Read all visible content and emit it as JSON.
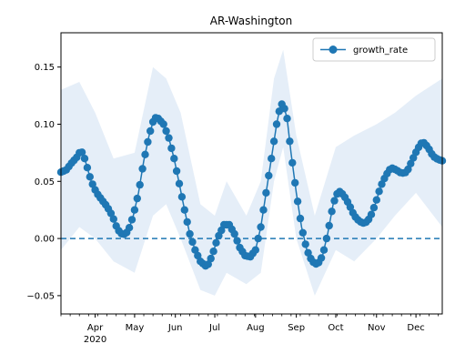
{
  "chart_data": {
    "type": "line",
    "title": "AR-Washington",
    "xlabel": "",
    "ylabel": "",
    "x_range": [
      "2020-03-06",
      "2020-12-21"
    ],
    "ylim": [
      -0.066,
      0.18
    ],
    "grid": false,
    "legend_position": "top-right",
    "series": [
      {
        "name": "growth_rate",
        "color": "#1f77b4",
        "marker": "circle",
        "points": [
          [
            "2020-03-06",
            0.058
          ],
          [
            "2020-03-10",
            0.06
          ],
          [
            "2020-03-14",
            0.066
          ],
          [
            "2020-03-18",
            0.071
          ],
          [
            "2020-03-21",
            0.077
          ],
          [
            "2020-03-23",
            0.074
          ],
          [
            "2020-03-26",
            0.062
          ],
          [
            "2020-03-29",
            0.05
          ],
          [
            "2020-04-02",
            0.04
          ],
          [
            "2020-04-06",
            0.034
          ],
          [
            "2020-04-10",
            0.028
          ],
          [
            "2020-04-14",
            0.02
          ],
          [
            "2020-04-18",
            0.008
          ],
          [
            "2020-04-22",
            0.003
          ],
          [
            "2020-04-26",
            0.006
          ],
          [
            "2020-04-30",
            0.02
          ],
          [
            "2020-05-04",
            0.04
          ],
          [
            "2020-05-08",
            0.068
          ],
          [
            "2020-05-12",
            0.09
          ],
          [
            "2020-05-16",
            0.106
          ],
          [
            "2020-05-19",
            0.105
          ],
          [
            "2020-05-23",
            0.1
          ],
          [
            "2020-05-27",
            0.088
          ],
          [
            "2020-05-31",
            0.07
          ],
          [
            "2020-06-04",
            0.048
          ],
          [
            "2020-06-08",
            0.025
          ],
          [
            "2020-06-12",
            0.004
          ],
          [
            "2020-06-16",
            -0.01
          ],
          [
            "2020-06-20",
            -0.02
          ],
          [
            "2020-06-25",
            -0.025
          ],
          [
            "2020-06-29",
            -0.015
          ],
          [
            "2020-07-03",
            0.0
          ],
          [
            "2020-07-08",
            0.012
          ],
          [
            "2020-07-12",
            0.012
          ],
          [
            "2020-07-16",
            0.004
          ],
          [
            "2020-07-20",
            -0.008
          ],
          [
            "2020-07-24",
            -0.015
          ],
          [
            "2020-07-28",
            -0.016
          ],
          [
            "2020-08-01",
            -0.01
          ],
          [
            "2020-08-05",
            0.01
          ],
          [
            "2020-08-09",
            0.04
          ],
          [
            "2020-08-13",
            0.07
          ],
          [
            "2020-08-17",
            0.1
          ],
          [
            "2020-08-20",
            0.117
          ],
          [
            "2020-08-22",
            0.118
          ],
          [
            "2020-08-25",
            0.105
          ],
          [
            "2020-08-28",
            0.075
          ],
          [
            "2020-09-01",
            0.04
          ],
          [
            "2020-09-05",
            0.01
          ],
          [
            "2020-09-09",
            -0.01
          ],
          [
            "2020-09-13",
            -0.02
          ],
          [
            "2020-09-17",
            -0.023
          ],
          [
            "2020-09-21",
            -0.015
          ],
          [
            "2020-09-25",
            0.005
          ],
          [
            "2020-09-29",
            0.03
          ],
          [
            "2020-10-03",
            0.042
          ],
          [
            "2020-10-07",
            0.038
          ],
          [
            "2020-10-11",
            0.03
          ],
          [
            "2020-10-15",
            0.02
          ],
          [
            "2020-10-19",
            0.015
          ],
          [
            "2020-10-23",
            0.013
          ],
          [
            "2020-10-27",
            0.018
          ],
          [
            "2020-10-31",
            0.03
          ],
          [
            "2020-11-04",
            0.045
          ],
          [
            "2020-11-08",
            0.055
          ],
          [
            "2020-11-12",
            0.062
          ],
          [
            "2020-11-16",
            0.06
          ],
          [
            "2020-11-20",
            0.057
          ],
          [
            "2020-11-24",
            0.058
          ],
          [
            "2020-11-28",
            0.068
          ],
          [
            "2020-12-02",
            0.078
          ],
          [
            "2020-12-06",
            0.085
          ],
          [
            "2020-12-10",
            0.08
          ],
          [
            "2020-12-14",
            0.072
          ],
          [
            "2020-12-18",
            0.069
          ],
          [
            "2020-12-21",
            0.068
          ]
        ],
        "band": [
          [
            "2020-03-06",
            -0.01,
            0.13
          ],
          [
            "2020-03-20",
            0.01,
            0.137
          ],
          [
            "2020-04-01",
            0.0,
            0.11
          ],
          [
            "2020-04-15",
            -0.02,
            0.07
          ],
          [
            "2020-05-01",
            -0.03,
            0.075
          ],
          [
            "2020-05-15",
            0.02,
            0.15
          ],
          [
            "2020-05-25",
            0.03,
            0.14
          ],
          [
            "2020-06-05",
            0.0,
            0.11
          ],
          [
            "2020-06-20",
            -0.045,
            0.03
          ],
          [
            "2020-07-01",
            -0.05,
            0.02
          ],
          [
            "2020-07-10",
            -0.03,
            0.05
          ],
          [
            "2020-07-25",
            -0.04,
            0.02
          ],
          [
            "2020-08-05",
            -0.03,
            0.05
          ],
          [
            "2020-08-15",
            0.05,
            0.14
          ],
          [
            "2020-08-22",
            0.08,
            0.165
          ],
          [
            "2020-09-01",
            0.0,
            0.09
          ],
          [
            "2020-09-15",
            -0.05,
            0.02
          ],
          [
            "2020-10-01",
            -0.01,
            0.08
          ],
          [
            "2020-10-15",
            -0.02,
            0.09
          ],
          [
            "2020-11-01",
            0.0,
            0.1
          ],
          [
            "2020-11-15",
            0.02,
            0.11
          ],
          [
            "2020-12-01",
            0.04,
            0.125
          ],
          [
            "2020-12-21",
            0.01,
            0.14
          ]
        ]
      }
    ],
    "reference_line": {
      "y": 0.0,
      "style": "dashed",
      "color": "#1f77b4"
    },
    "y_ticks": [
      {
        "value": -0.05,
        "label": "−0.05"
      },
      {
        "value": 0.0,
        "label": "0.00"
      },
      {
        "value": 0.05,
        "label": "0.05"
      },
      {
        "value": 0.1,
        "label": "0.10"
      },
      {
        "value": 0.15,
        "label": "0.15"
      }
    ],
    "x_ticks": [
      {
        "date": "2020-04-01",
        "label": "Apr",
        "sublabel": "2020"
      },
      {
        "date": "2020-05-01",
        "label": "May"
      },
      {
        "date": "2020-06-01",
        "label": "Jun"
      },
      {
        "date": "2020-07-01",
        "label": "Jul"
      },
      {
        "date": "2020-08-01",
        "label": "Aug"
      },
      {
        "date": "2020-09-01",
        "label": "Sep"
      },
      {
        "date": "2020-10-01",
        "label": "Oct"
      },
      {
        "date": "2020-11-01",
        "label": "Nov"
      },
      {
        "date": "2020-12-01",
        "label": "Dec"
      }
    ]
  }
}
